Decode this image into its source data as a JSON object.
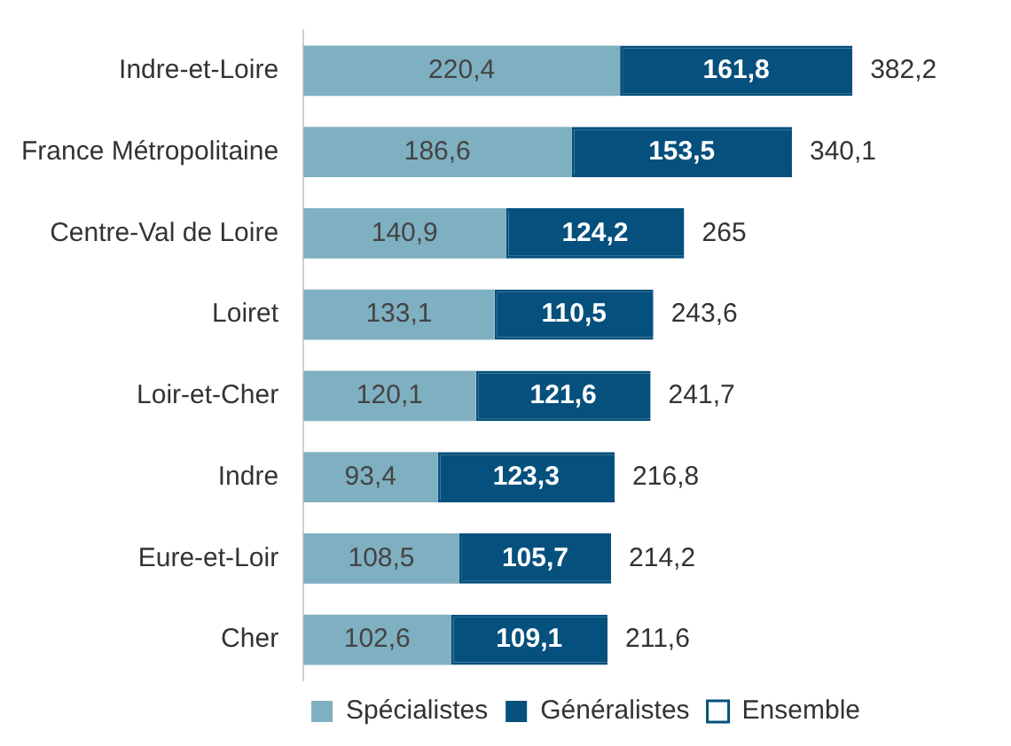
{
  "chart_data": {
    "type": "bar",
    "orientation": "horizontal",
    "stacked": true,
    "legend": "bottom right",
    "grid": false,
    "tick_labels": "y",
    "categories": [
      "Indre-et-Loire",
      "France Métropolitaine",
      "Centre-Val de Loire",
      "Loiret",
      "Loir-et-Cher",
      "Indre",
      "Eure-et-Loir",
      "Cher"
    ],
    "series": [
      {
        "name": "Spécialistes",
        "color": "#7fb0c1",
        "values": [
          220.4,
          186.6,
          140.9,
          133.1,
          120.1,
          93.4,
          108.5,
          102.6
        ],
        "value_labels": [
          "220,4",
          "186,6",
          "140,9",
          "133,1",
          "120,1",
          "93,4",
          "108,5",
          "102,6"
        ]
      },
      {
        "name": "Généralistes",
        "color": "#05507d",
        "values": [
          161.8,
          153.5,
          124.2,
          110.5,
          121.6,
          123.3,
          105.7,
          109.1
        ],
        "value_labels": [
          "161,8",
          "153,5",
          "124,2",
          "110,5",
          "121,6",
          "123,3",
          "105,7",
          "109,1"
        ]
      },
      {
        "name": "Ensemble",
        "color": "#ffffff",
        "values": [
          null,
          null,
          null,
          null,
          null,
          null,
          null,
          null
        ]
      }
    ],
    "totals": [
      "382,2",
      "340,1",
      "265",
      "243,6",
      "241,7",
      "216,8",
      "214,2",
      "211,6"
    ]
  }
}
